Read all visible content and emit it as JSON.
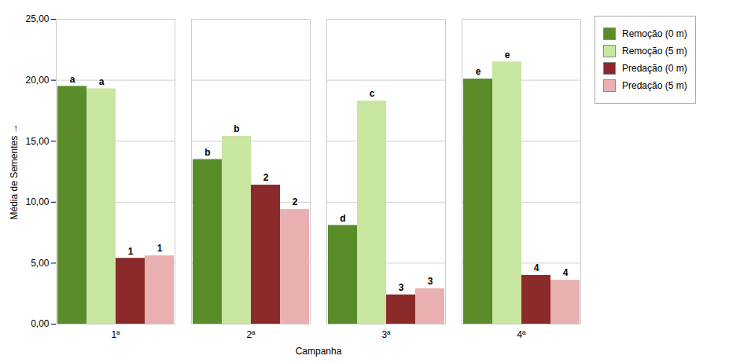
{
  "chart_data": {
    "type": "bar",
    "xlabel": "Campanha",
    "ylabel": "Média de Sementes",
    "categories": [
      "1ª",
      "2ª",
      "3ª",
      "4ª"
    ],
    "series": [
      {
        "name": "Remoção (0 m)",
        "color": "#5a8c2a",
        "values": [
          19.5,
          13.5,
          8.1,
          20.1
        ],
        "annotations": [
          "a",
          "b",
          "d",
          "e"
        ]
      },
      {
        "name": "Remoção (5 m)",
        "color": "#c8e6a0",
        "values": [
          19.3,
          15.4,
          18.3,
          21.5
        ],
        "annotations": [
          "a",
          "b",
          "c",
          "e"
        ]
      },
      {
        "name": "Predação (0 m)",
        "color": "#8b2a2a",
        "values": [
          5.4,
          11.4,
          2.4,
          4.0
        ],
        "annotations": [
          "1",
          "2",
          "3",
          "4"
        ]
      },
      {
        "name": "Predação (5 m)",
        "color": "#e8b0b0",
        "values": [
          5.6,
          9.4,
          2.9,
          3.6
        ],
        "annotations": [
          "1",
          "2",
          "3",
          "4"
        ]
      }
    ],
    "ylim": [
      0,
      25
    ],
    "yticks": [
      {
        "value": 0,
        "label": "0,00"
      },
      {
        "value": 5,
        "label": "5,00"
      },
      {
        "value": 10,
        "label": "10,00"
      },
      {
        "value": 15,
        "label": "15,00"
      },
      {
        "value": 20,
        "label": "20,00"
      },
      {
        "value": 25,
        "label": "25,00"
      }
    ],
    "grid": true,
    "legend": "right"
  }
}
